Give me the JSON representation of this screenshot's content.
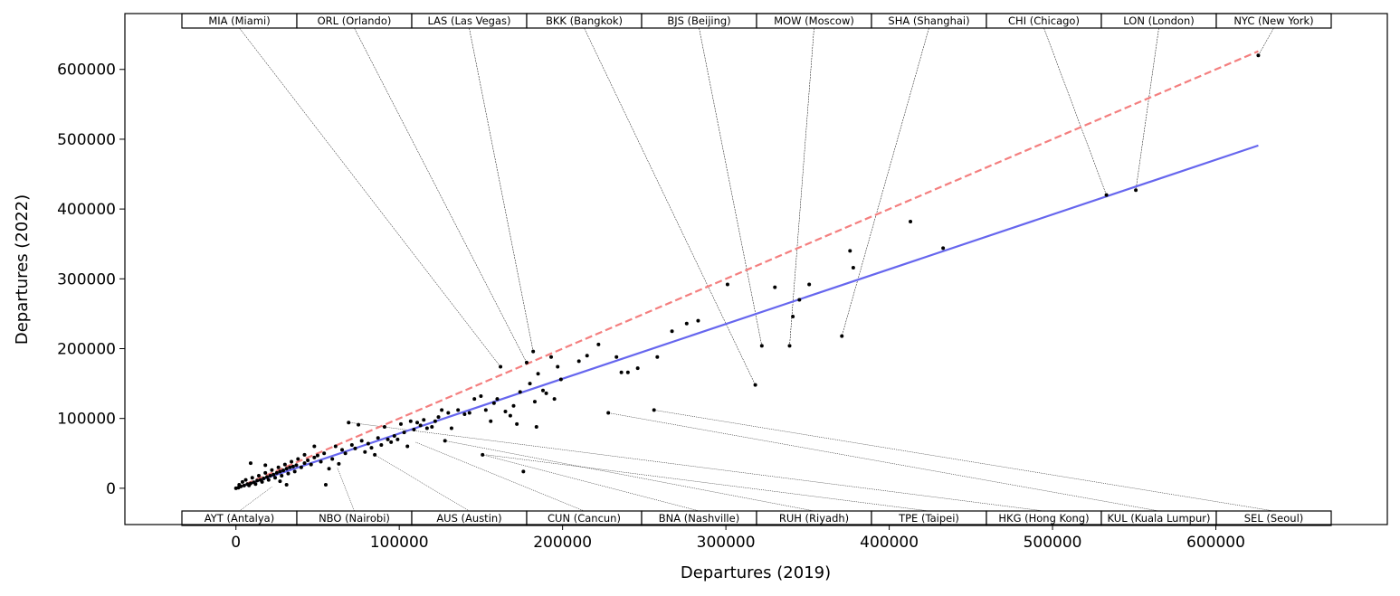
{
  "chart_data": {
    "type": "scatter",
    "title": "",
    "xlabel": "Departures (2019)",
    "ylabel": "Departures (2022)",
    "xlim": [
      -68000,
      705000
    ],
    "ylim": [
      -52000,
      680000
    ],
    "xticks": [
      0,
      100000,
      200000,
      300000,
      400000,
      500000,
      600000
    ],
    "yticks": [
      0,
      100000,
      200000,
      300000,
      400000,
      500000,
      600000
    ],
    "grid": false,
    "lines": [
      {
        "style": "dashed",
        "color": "#f47f7f",
        "x": [
          0,
          626000
        ],
        "y": [
          0,
          626000
        ]
      },
      {
        "style": "solid",
        "color": "#6666ee",
        "x": [
          0,
          626000
        ],
        "y": [
          0,
          491000
        ]
      }
    ],
    "point_color": "#000000",
    "points": [
      [
        0,
        0
      ],
      [
        1500,
        800
      ],
      [
        3000,
        2500
      ],
      [
        5000,
        3800
      ],
      [
        7000,
        6000
      ],
      [
        9000,
        7000
      ],
      [
        11000,
        8500
      ],
      [
        13000,
        11000
      ],
      [
        15000,
        12000
      ],
      [
        17000,
        14000
      ],
      [
        19000,
        16000
      ],
      [
        21000,
        18000
      ],
      [
        23000,
        19500
      ],
      [
        25000,
        22000
      ],
      [
        27000,
        24000
      ],
      [
        29000,
        25500
      ],
      [
        31000,
        28000
      ],
      [
        33000,
        30000
      ],
      [
        35000,
        31000
      ],
      [
        37000,
        33000
      ],
      [
        2000,
        5000
      ],
      [
        4000,
        9000
      ],
      [
        6000,
        12000
      ],
      [
        8000,
        4000
      ],
      [
        10000,
        15000
      ],
      [
        12000,
        6000
      ],
      [
        14000,
        18000
      ],
      [
        16000,
        9000
      ],
      [
        18000,
        22000
      ],
      [
        20000,
        12000
      ],
      [
        22000,
        26000
      ],
      [
        24000,
        15000
      ],
      [
        26000,
        30000
      ],
      [
        28000,
        18000
      ],
      [
        30000,
        34000
      ],
      [
        32000,
        21000
      ],
      [
        34000,
        38000
      ],
      [
        36000,
        24000
      ],
      [
        38000,
        42000
      ],
      [
        40000,
        30000
      ],
      [
        9000,
        36000
      ],
      [
        18000,
        33000
      ],
      [
        27000,
        10000
      ],
      [
        31000,
        5000
      ],
      [
        42000,
        36000
      ],
      [
        44000,
        40000
      ],
      [
        46000,
        34000
      ],
      [
        48000,
        44000
      ],
      [
        50000,
        47000
      ],
      [
        52000,
        38000
      ],
      [
        54000,
        50000
      ],
      [
        55000,
        5000
      ],
      [
        57000,
        28000
      ],
      [
        59000,
        42000
      ],
      [
        61000,
        60000
      ],
      [
        63000,
        35000
      ],
      [
        65000,
        55000
      ],
      [
        67000,
        50000
      ],
      [
        69000,
        94000
      ],
      [
        71000,
        62000
      ],
      [
        73000,
        57000
      ],
      [
        75000,
        91000
      ],
      [
        77000,
        68000
      ],
      [
        79000,
        52000
      ],
      [
        81000,
        64000
      ],
      [
        83000,
        58000
      ],
      [
        85000,
        48000
      ],
      [
        87000,
        72000
      ],
      [
        89000,
        62000
      ],
      [
        91000,
        88000
      ],
      [
        93000,
        70000
      ],
      [
        95000,
        66000
      ],
      [
        97000,
        75000
      ],
      [
        99000,
        70000
      ],
      [
        101000,
        92000
      ],
      [
        103000,
        80000
      ],
      [
        105000,
        60000
      ],
      [
        107000,
        96000
      ],
      [
        109000,
        84000
      ],
      [
        111000,
        94000
      ],
      [
        113000,
        90000
      ],
      [
        115000,
        98000
      ],
      [
        117000,
        86000
      ],
      [
        120000,
        88000
      ],
      [
        122000,
        96000
      ],
      [
        124000,
        102000
      ],
      [
        126000,
        112000
      ],
      [
        128000,
        68000
      ],
      [
        130000,
        108000
      ],
      [
        132000,
        86000
      ],
      [
        136000,
        112000
      ],
      [
        140000,
        106000
      ],
      [
        143000,
        108000
      ],
      [
        146000,
        128000
      ],
      [
        150000,
        132000
      ],
      [
        153000,
        112000
      ],
      [
        156000,
        96000
      ],
      [
        158000,
        122000
      ],
      [
        160000,
        128000
      ],
      [
        162000,
        174000
      ],
      [
        165000,
        110000
      ],
      [
        168000,
        104000
      ],
      [
        170000,
        118000
      ],
      [
        172000,
        92000
      ],
      [
        174000,
        138000
      ],
      [
        176000,
        24000
      ],
      [
        178000,
        180000
      ],
      [
        180000,
        150000
      ],
      [
        182000,
        196000
      ],
      [
        183000,
        124000
      ],
      [
        184000,
        88000
      ],
      [
        185000,
        164000
      ],
      [
        188000,
        140000
      ],
      [
        190000,
        136000
      ],
      [
        193000,
        188000
      ],
      [
        195000,
        128000
      ],
      [
        197000,
        174000
      ],
      [
        199000,
        156000
      ],
      [
        210000,
        182000
      ],
      [
        215000,
        190000
      ],
      [
        222000,
        206000
      ],
      [
        228000,
        108000
      ],
      [
        233000,
        188000
      ],
      [
        236000,
        166000
      ],
      [
        240000,
        166000
      ],
      [
        246000,
        172000
      ],
      [
        256000,
        112000
      ],
      [
        258000,
        188000
      ],
      [
        267000,
        225000
      ],
      [
        276000,
        236000
      ],
      [
        283000,
        240000
      ],
      [
        301000,
        292000
      ],
      [
        318000,
        148000
      ],
      [
        322000,
        204000
      ],
      [
        330000,
        288000
      ],
      [
        339000,
        204000
      ],
      [
        341000,
        246000
      ],
      [
        345000,
        270000
      ],
      [
        351000,
        292000
      ],
      [
        371000,
        218000
      ],
      [
        376000,
        340000
      ],
      [
        378000,
        316000
      ],
      [
        413000,
        382000
      ],
      [
        433000,
        344000
      ],
      [
        533000,
        420000
      ],
      [
        551000,
        427000
      ],
      [
        626000,
        620000
      ],
      [
        151000,
        48000
      ],
      [
        42000,
        48000
      ],
      [
        48000,
        60000
      ]
    ],
    "top_labels": [
      {
        "label": "MIA (Miami)",
        "x": 162000,
        "y": 174000
      },
      {
        "label": "ORL (Orlando)",
        "x": 178000,
        "y": 180000
      },
      {
        "label": "LAS (Las Vegas)",
        "x": 182000,
        "y": 196000
      },
      {
        "label": "BKK (Bangkok)",
        "x": 318000,
        "y": 148000
      },
      {
        "label": "BJS (Beijing)",
        "x": 322000,
        "y": 204000
      },
      {
        "label": "MOW (Moscow)",
        "x": 339000,
        "y": 204000
      },
      {
        "label": "SHA (Shanghai)",
        "x": 371000,
        "y": 218000
      },
      {
        "label": "CHI (Chicago)",
        "x": 533000,
        "y": 420000
      },
      {
        "label": "LON (London)",
        "x": 551000,
        "y": 427000
      },
      {
        "label": "NYC (New York)",
        "x": 626000,
        "y": 620000
      }
    ],
    "bottom_labels": [
      {
        "label": "AYT (Antalya)",
        "x": 22000,
        "y": 2000
      },
      {
        "label": "NBO (Nairobi)",
        "x": 62000,
        "y": 30000
      },
      {
        "label": "AUS (Austin)",
        "x": 85000,
        "y": 48000
      },
      {
        "label": "CUN (Cancun)",
        "x": 110000,
        "y": 66000
      },
      {
        "label": "BNA (Nashville)",
        "x": 151000,
        "y": 48000
      },
      {
        "label": "RUH (Riyadh)",
        "x": 128000,
        "y": 68000
      },
      {
        "label": "TPE (Taipei)",
        "x": 153000,
        "y": 48000
      },
      {
        "label": "HKG (Hong Kong)",
        "x": 70000,
        "y": 94000
      },
      {
        "label": "KUL (Kuala Lumpur)",
        "x": 228000,
        "y": 108000
      },
      {
        "label": "SEL (Seoul)",
        "x": 256000,
        "y": 112000
      }
    ]
  }
}
